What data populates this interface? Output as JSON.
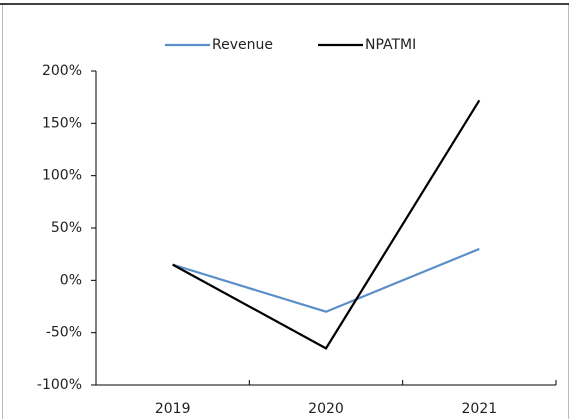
{
  "chart_data": {
    "type": "line",
    "categories": [
      "2019",
      "2020",
      "2021"
    ],
    "series": [
      {
        "name": "Revenue",
        "color": "#5b8fc9",
        "values": [
          15,
          -30,
          30
        ]
      },
      {
        "name": "NPATMI",
        "color": "#000000",
        "values": [
          15,
          -65,
          172
        ]
      }
    ],
    "ylim": [
      -100,
      200
    ],
    "yticks": [
      {
        "value": -100,
        "label": "-100%"
      },
      {
        "value": -50,
        "label": "-50%"
      },
      {
        "value": 0,
        "label": "0%"
      },
      {
        "value": 50,
        "label": "50%"
      },
      {
        "value": 100,
        "label": "100%"
      },
      {
        "value": 150,
        "label": "150%"
      },
      {
        "value": 200,
        "label": "200%"
      }
    ],
    "legend": "top"
  }
}
